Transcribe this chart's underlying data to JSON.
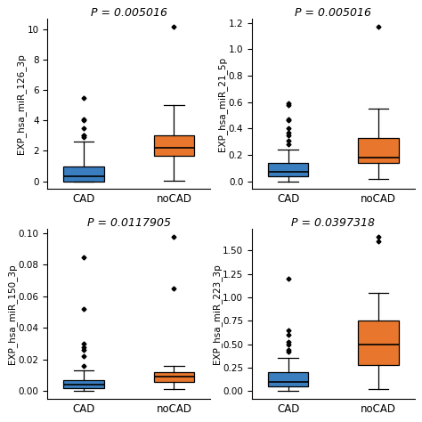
{
  "subplots": [
    {
      "title": "P = 0.005016",
      "ylabel": "EXP_hsa_miR_126_3p",
      "groups": [
        "CAD",
        "noCAD"
      ],
      "colors": [
        "#3A7EBF",
        "#E8762C"
      ],
      "cad": {
        "whislo": 0.0,
        "q1": 0.0,
        "med": 0.35,
        "q3": 1.0,
        "whishi": 2.6,
        "fliers": [
          2.9,
          3.0,
          3.0,
          3.5,
          4.0,
          4.1,
          5.5
        ]
      },
      "nocad": {
        "whislo": 0.05,
        "q1": 1.7,
        "med": 2.2,
        "q3": 3.0,
        "whishi": 5.0,
        "fliers": [
          10.2
        ]
      }
    },
    {
      "title": "P = 0.005016",
      "ylabel": "EXP_hsa_miR_21_5p",
      "groups": [
        "CAD",
        "noCAD"
      ],
      "colors": [
        "#3A7EBF",
        "#E8762C"
      ],
      "cad": {
        "whislo": 0.0,
        "q1": 0.04,
        "med": 0.07,
        "q3": 0.14,
        "whishi": 0.24,
        "fliers": [
          0.28,
          0.31,
          0.35,
          0.37,
          0.4,
          0.46,
          0.47,
          0.58,
          0.59
        ]
      },
      "nocad": {
        "whislo": 0.02,
        "q1": 0.14,
        "med": 0.18,
        "q3": 0.33,
        "whishi": 0.55,
        "fliers": [
          1.17
        ]
      }
    },
    {
      "title": "P = 0.0117905",
      "ylabel": "EXP_hsa_miR_150_3p",
      "groups": [
        "CAD",
        "noCAD"
      ],
      "colors": [
        "#3A7EBF",
        "#E8762C"
      ],
      "cad": {
        "whislo": 0.0,
        "q1": 0.002,
        "med": 0.004,
        "q3": 0.007,
        "whishi": 0.013,
        "fliers": [
          0.016,
          0.022,
          0.026,
          0.028,
          0.03,
          0.052,
          0.085
        ]
      },
      "nocad": {
        "whislo": 0.001,
        "q1": 0.006,
        "med": 0.009,
        "q3": 0.012,
        "whishi": 0.016,
        "fliers": [
          0.065,
          0.098
        ]
      }
    },
    {
      "title": "P = 0.0397318",
      "ylabel": "EXP_hsa_miR_223_3p",
      "groups": [
        "CAD",
        "noCAD"
      ],
      "colors": [
        "#3A7EBF",
        "#E8762C"
      ],
      "cad": {
        "whislo": 0.0,
        "q1": 0.05,
        "med": 0.1,
        "q3": 0.2,
        "whishi": 0.35,
        "fliers": [
          0.42,
          0.44,
          0.5,
          0.52,
          0.6,
          0.65,
          1.2
        ]
      },
      "nocad": {
        "whislo": 0.02,
        "q1": 0.28,
        "med": 0.5,
        "q3": 0.75,
        "whishi": 1.05,
        "fliers": [
          1.6,
          1.65
        ]
      }
    }
  ],
  "title_fontsize": 9,
  "ylabel_fontsize": 7.5,
  "tick_fontsize": 7.5,
  "xlabel_fontsize": 8.5,
  "background_color": "#FFFFFF",
  "flier_marker": "D",
  "flier_size": 2.5,
  "box_width": 0.45
}
